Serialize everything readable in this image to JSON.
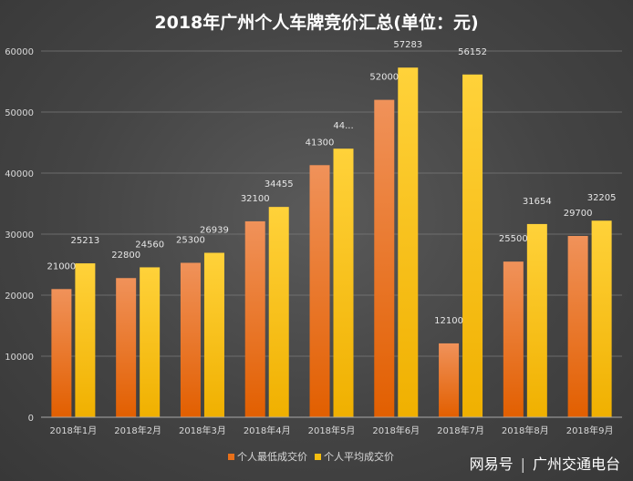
{
  "chart_data": {
    "type": "bar",
    "title": "2018年广州个人车牌竞价汇总(单位：元)",
    "categories": [
      "2018年1月",
      "2018年2月",
      "2018年3月",
      "2018年4月",
      "2018年5月",
      "2018年6月",
      "2018年7月",
      "2018年8月",
      "2018年9月"
    ],
    "series": [
      {
        "name": "个人最低成交价",
        "values": [
          21000,
          22800,
          25300,
          32100,
          41300,
          52000,
          12100,
          25500,
          29700
        ],
        "labels": [
          "21000",
          "22800",
          "25300",
          "32100",
          "41300",
          "52000",
          "12100",
          "25500",
          "29700"
        ],
        "color": "#e8701a"
      },
      {
        "name": "个人平均成交价",
        "values": [
          25213,
          24560,
          26939,
          34455,
          44000,
          57283,
          56152,
          31654,
          32205
        ],
        "labels": [
          "25213",
          "24560",
          "26939",
          "34455",
          "44...",
          "57283",
          "56152",
          "31654",
          "32205"
        ],
        "color": "#f5be0f"
      }
    ],
    "ylim": [
      0,
      60000
    ],
    "yticks": [
      0,
      10000,
      20000,
      30000,
      40000,
      50000,
      60000
    ],
    "ytick_labels": [
      "0",
      "10000",
      "20000",
      "30000",
      "40000",
      "50000",
      "60000"
    ],
    "grid": true,
    "legend_position": "bottom"
  },
  "watermark": {
    "brand": "网易号",
    "separator": "|",
    "source": "广州交通电台"
  }
}
